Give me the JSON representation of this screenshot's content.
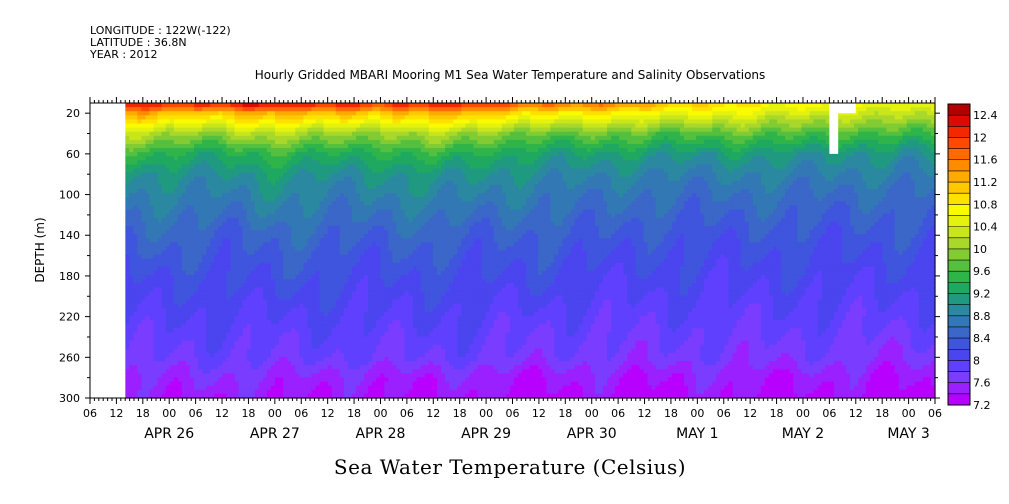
{
  "header": {
    "longitude": "LONGITUDE : 122W(-122)",
    "latitude": "LATITUDE : 36.8N",
    "year": "YEAR : 2012"
  },
  "chart_data": {
    "type": "heatmap",
    "title": "Hourly Gridded MBARI Mooring M1 Sea Water Temperature and Salinity Observations",
    "variable_title": "Sea Water Temperature (Celsius)",
    "ylabel": "DEPTH (m)",
    "y_reversed": true,
    "ylim": [
      0,
      300
    ],
    "y_ticks": [
      20,
      60,
      100,
      140,
      180,
      220,
      260,
      300
    ],
    "x_start": "2012-04-25 06:00",
    "x_end": "2012-05-03 06:00",
    "x_hour_ticks": [
      "06",
      "12",
      "18",
      "00",
      "06",
      "12",
      "18",
      "00",
      "06",
      "12",
      "18",
      "00",
      "06",
      "12",
      "18",
      "00",
      "06",
      "12",
      "18",
      "00",
      "06",
      "12",
      "18",
      "00",
      "06",
      "12",
      "18",
      "00",
      "06",
      "12",
      "18",
      "00",
      "06"
    ],
    "x_day_labels": [
      {
        "label": "APR 26",
        "at": "2012-04-26 00:00"
      },
      {
        "label": "APR 27",
        "at": "2012-04-27 00:00"
      },
      {
        "label": "APR 28",
        "at": "2012-04-28 00:00"
      },
      {
        "label": "APR 29",
        "at": "2012-04-29 00:00"
      },
      {
        "label": "APR 30",
        "at": "2012-04-30 00:00"
      },
      {
        "label": "MAY  1",
        "at": "2012-05-01 00:00"
      },
      {
        "label": "MAY  2",
        "at": "2012-05-02 00:00"
      },
      {
        "label": "MAY  3",
        "at": "2012-05-03 00:00"
      }
    ],
    "data_start": "2012-04-25 14:00",
    "colorbar": {
      "levels": [
        7.2,
        7.4,
        7.6,
        7.8,
        8,
        8.2,
        8.4,
        8.6,
        8.8,
        9,
        9.2,
        9.4,
        9.6,
        9.8,
        10,
        10.2,
        10.4,
        10.6,
        10.8,
        11,
        11.2,
        11.4,
        11.6,
        11.8,
        12,
        12.2,
        12.4,
        12.6
      ],
      "labels": [
        "12.4",
        "12",
        "11.6",
        "11.2",
        "10.8",
        "10.4",
        "10",
        "9.6",
        "9.2",
        "8.8",
        "8.4",
        "8",
        "7.6",
        "7.2"
      ],
      "colors": [
        "#b800ff",
        "#9a20ff",
        "#7a3cff",
        "#6040ff",
        "#4b45f0",
        "#3f55dd",
        "#3a67c8",
        "#3278b4",
        "#2a88a0",
        "#1f9a80",
        "#1ea860",
        "#2fb44a",
        "#55bf3e",
        "#82cc33",
        "#a9d82a",
        "#c9e61a",
        "#e5f20e",
        "#fbfb00",
        "#ffe100",
        "#ffc800",
        "#ffaa00",
        "#ff8c00",
        "#ff6a00",
        "#ff4a00",
        "#f42800",
        "#dc0a00",
        "#b00000"
      ]
    },
    "depth_levels": [
      10,
      20,
      40,
      60,
      80,
      100,
      140,
      180,
      220,
      260,
      280,
      300
    ],
    "profiles": [
      {
        "time": "2012-04-25 14:00",
        "temps": [
          12.3,
          11.3,
          10.2,
          9.5,
          9.0,
          8.8,
          8.5,
          8.2,
          8.0,
          7.8,
          7.6,
          7.5
        ]
      },
      {
        "time": "2012-04-26 00:00",
        "temps": [
          12.2,
          11.2,
          10.1,
          9.4,
          9.0,
          8.8,
          8.5,
          8.2,
          8.0,
          7.8,
          7.6,
          7.5
        ]
      },
      {
        "time": "2012-04-26 12:00",
        "temps": [
          12.2,
          11.1,
          10.0,
          9.3,
          9.0,
          8.8,
          8.4,
          8.2,
          8.0,
          7.8,
          7.6,
          7.4
        ]
      },
      {
        "time": "2012-04-27 00:00",
        "temps": [
          12.4,
          11.3,
          10.2,
          9.5,
          9.1,
          8.9,
          8.5,
          8.3,
          8.0,
          7.8,
          7.6,
          7.5
        ]
      },
      {
        "time": "2012-04-27 12:00",
        "temps": [
          12.3,
          11.2,
          10.1,
          9.4,
          9.0,
          8.8,
          8.5,
          8.2,
          8.0,
          7.8,
          7.5,
          7.4
        ]
      },
      {
        "time": "2012-04-28 00:00",
        "temps": [
          12.0,
          11.0,
          9.9,
          9.3,
          9.0,
          8.8,
          8.4,
          8.2,
          8.0,
          7.8,
          7.5,
          7.4
        ]
      },
      {
        "time": "2012-04-28 12:00",
        "temps": [
          12.4,
          11.4,
          10.3,
          9.6,
          9.1,
          8.9,
          8.5,
          8.2,
          8.0,
          7.8,
          7.5,
          7.4
        ]
      },
      {
        "time": "2012-04-29 00:00",
        "temps": [
          12.0,
          11.0,
          9.9,
          9.3,
          9.0,
          8.8,
          8.4,
          8.2,
          8.0,
          7.8,
          7.5,
          7.4
        ]
      },
      {
        "time": "2012-04-29 12:00",
        "temps": [
          11.8,
          10.9,
          9.8,
          9.2,
          8.9,
          8.7,
          8.4,
          8.2,
          7.9,
          7.7,
          7.4,
          7.3
        ]
      },
      {
        "time": "2012-04-30 00:00",
        "temps": [
          11.6,
          10.8,
          9.8,
          9.2,
          8.9,
          8.7,
          8.4,
          8.1,
          7.9,
          7.7,
          7.5,
          7.4
        ]
      },
      {
        "time": "2012-04-30 12:00",
        "temps": [
          11.4,
          10.7,
          9.7,
          9.1,
          8.8,
          8.6,
          8.3,
          8.1,
          7.9,
          7.7,
          7.4,
          7.3
        ]
      },
      {
        "time": "2012-05-01 00:00",
        "temps": [
          11.0,
          10.6,
          9.7,
          9.1,
          8.8,
          8.6,
          8.3,
          8.1,
          7.9,
          7.7,
          7.5,
          7.4
        ]
      },
      {
        "time": "2012-05-01 12:00",
        "temps": [
          10.8,
          10.5,
          9.7,
          9.1,
          8.8,
          8.6,
          8.3,
          8.1,
          7.9,
          7.7,
          7.5,
          7.4
        ]
      },
      {
        "time": "2012-05-02 00:00",
        "temps": [
          10.8,
          10.4,
          9.7,
          9.1,
          8.8,
          8.6,
          8.3,
          8.1,
          7.9,
          7.7,
          7.4,
          7.3
        ]
      },
      {
        "time": "2012-05-02 12:00",
        "temps": [
          10.6,
          10.3,
          9.6,
          9.0,
          8.8,
          8.6,
          8.3,
          8.1,
          7.9,
          7.7,
          7.5,
          7.4
        ]
      },
      {
        "time": "2012-05-03 00:00",
        "temps": [
          10.6,
          10.3,
          9.6,
          9.0,
          8.7,
          8.5,
          8.3,
          8.1,
          7.9,
          7.6,
          7.4,
          7.3
        ]
      },
      {
        "time": "2012-05-03 06:00",
        "temps": [
          10.8,
          10.4,
          9.7,
          9.1,
          8.8,
          8.6,
          8.3,
          8.1,
          7.9,
          7.7,
          7.5,
          7.4
        ]
      }
    ],
    "missing_data": [
      {
        "time_from": "2012-04-25 06:00",
        "time_to": "2012-04-25 14:00",
        "depth_from": 0,
        "depth_to": 300
      },
      {
        "time_from": "2012-05-02 06:00",
        "time_to": "2012-05-02 08:00",
        "depth_from": 0,
        "depth_to": 60
      },
      {
        "time_from": "2012-05-02 06:00",
        "time_to": "2012-05-02 12:00",
        "depth_from": 0,
        "depth_to": 20
      }
    ]
  }
}
